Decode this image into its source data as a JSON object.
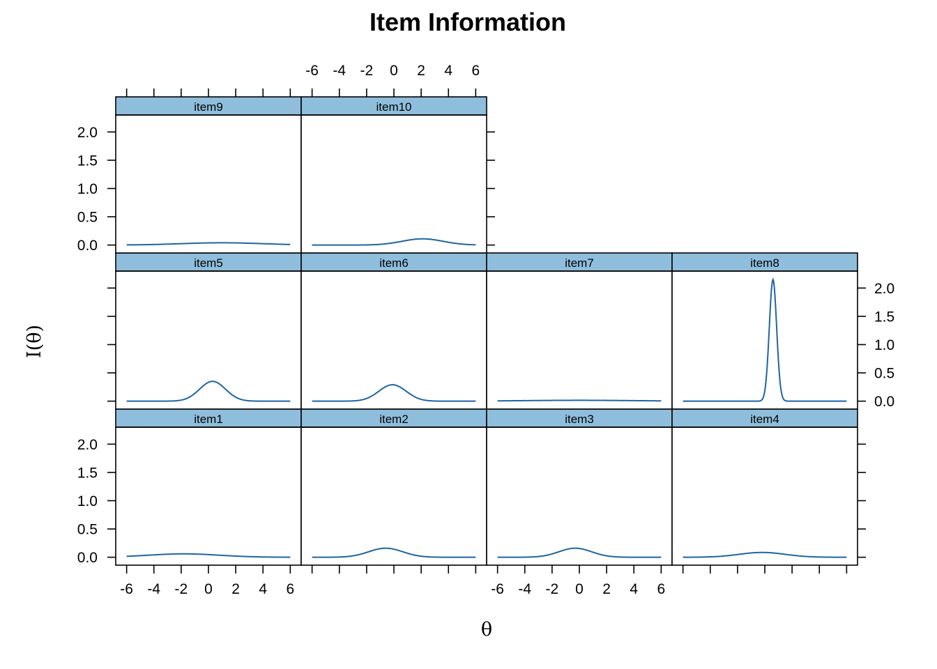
{
  "chart_data": {
    "type": "line",
    "title": "Item Information",
    "xlabel": "θ",
    "ylabel": "I(θ)",
    "xlim": [
      -6.8,
      6.8
    ],
    "ylim": [
      -0.14,
      2.3
    ],
    "x_ticks": [
      -6,
      -4,
      -2,
      0,
      2,
      4,
      6
    ],
    "x_tick_labels": [
      "-6",
      "-4",
      "-2",
      "0",
      "2",
      "4",
      "6"
    ],
    "y_ticks": [
      0,
      0.5,
      1,
      1.5,
      2
    ],
    "y_tick_labels": [
      "0.0",
      "0.5",
      "1.0",
      "1.5",
      "2.0"
    ],
    "line_color": "#1f64a0",
    "strip_color": "#8fbedc",
    "grid": false,
    "layout": {
      "columns": 4,
      "rows": 3
    },
    "series": [
      {
        "name": "item1",
        "peak": 0.06,
        "location": -1.8,
        "spread": 2.6
      },
      {
        "name": "item2",
        "peak": 0.16,
        "location": -0.6,
        "spread": 1.25
      },
      {
        "name": "item3",
        "peak": 0.16,
        "location": -0.3,
        "spread": 1.2
      },
      {
        "name": "item4",
        "peak": 0.085,
        "location": -0.2,
        "spread": 1.7
      },
      {
        "name": "item5",
        "peak": 0.35,
        "location": 0.3,
        "spread": 0.95
      },
      {
        "name": "item6",
        "peak": 0.29,
        "location": -0.1,
        "spread": 1.0
      },
      {
        "name": "item7",
        "peak": 0.015,
        "location": 0.0,
        "spread": 4.0
      },
      {
        "name": "item8",
        "peak": 2.15,
        "location": 0.6,
        "spread": 0.27
      },
      {
        "name": "item9",
        "peak": 0.04,
        "location": 1.0,
        "spread": 3.0
      },
      {
        "name": "item10",
        "peak": 0.11,
        "location": 2.1,
        "spread": 1.5
      }
    ]
  }
}
